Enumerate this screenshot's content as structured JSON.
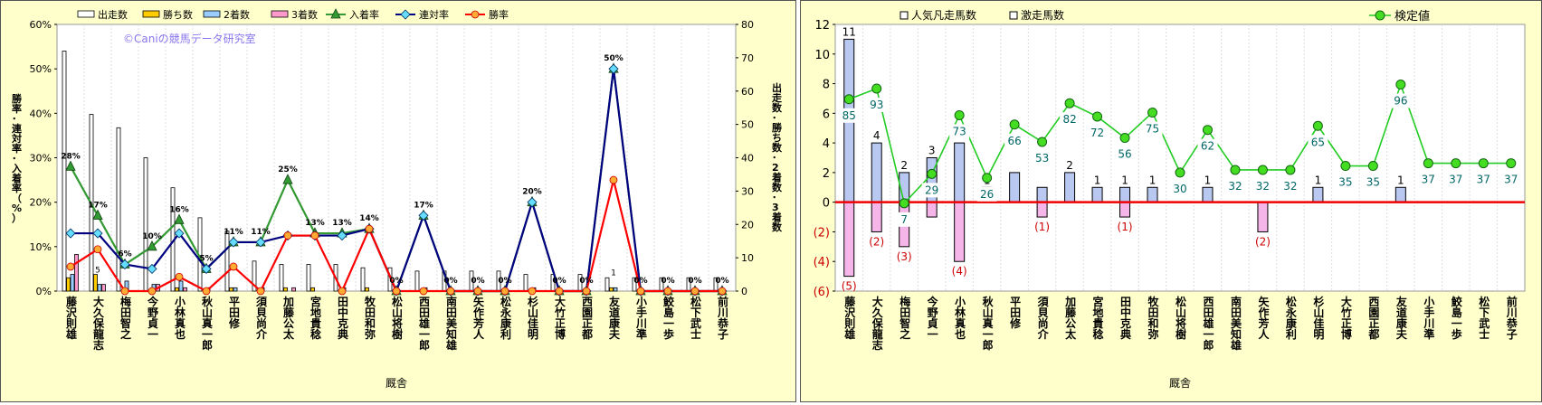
{
  "chart_data": [
    {
      "type": "bar",
      "xlabel": "厩舎",
      "ylabel_left": "勝率･連対率･入着率（%）",
      "ylabel_right": "出走数･勝ち数･2着数･3着数",
      "ylim_left": [
        0,
        60
      ],
      "ylim_right": [
        0,
        80
      ],
      "yticks_left": [
        "0%",
        "10%",
        "20%",
        "30%",
        "40%",
        "50%",
        "60%"
      ],
      "yticks_right": [
        "0",
        "10",
        "20",
        "30",
        "40",
        "50",
        "60",
        "70",
        "80"
      ],
      "watermark": "©Caniの競馬データ研究室",
      "legend": [
        "出走数",
        "勝ち数",
        "2着数",
        "3着数",
        "入着率",
        "連対率",
        "勝率"
      ],
      "categories": [
        "藤沢 則雄",
        "大久保 龍志",
        "梅田 智之",
        "今野 貞一",
        "小林 真也",
        "秋山 真一郎",
        "平田 修",
        "須貝 尚介",
        "加藤 公太",
        "宮地 貴稔",
        "田中 克典",
        "牧田 和弥",
        "松山 将樹",
        "西田 雄一郎",
        "南田 美知雄",
        "矢作 芳人",
        "松永 康利",
        "杉山 佳明",
        "大竹 正博",
        "西園 正都",
        "友道 康夫",
        "小手川 準",
        "鮫島 一歩",
        "松下 武士",
        "前川 恭子"
      ],
      "series": [
        {
          "name": "出走数",
          "axis": "right",
          "color": "#ffffff",
          "values": [
            72,
            53,
            49,
            40,
            31,
            22,
            18,
            9,
            8,
            8,
            8,
            7,
            7,
            6,
            6,
            6,
            6,
            5,
            5,
            5,
            4,
            4,
            4,
            4,
            4
          ]
        },
        {
          "name": "勝ち数",
          "axis": "right",
          "color": "#ffcc00",
          "values": [
            4,
            5,
            0,
            0,
            1,
            0,
            1,
            0,
            1,
            1,
            0,
            1,
            0,
            0,
            0,
            0,
            0,
            0,
            0,
            0,
            1,
            0,
            0,
            0,
            0
          ]
        },
        {
          "name": "2着数",
          "axis": "right",
          "color": "#99ccff",
          "values": [
            5,
            2,
            3,
            2,
            3,
            1,
            1,
            1,
            0,
            0,
            1,
            0,
            0,
            1,
            0,
            0,
            0,
            1,
            0,
            0,
            1,
            0,
            0,
            0,
            0
          ]
        },
        {
          "name": "3着数",
          "axis": "right",
          "color": "#ff99cc",
          "values": [
            11,
            2,
            0,
            2,
            1,
            0,
            0,
            0,
            1,
            0,
            0,
            0,
            0,
            0,
            0,
            0,
            0,
            0,
            0,
            0,
            0,
            0,
            0,
            0,
            0
          ]
        },
        {
          "name": "入着率",
          "axis": "left",
          "color": "#339933",
          "values": [
            28,
            17,
            6,
            10,
            16,
            5,
            11,
            11,
            25,
            13,
            13,
            14,
            0,
            17,
            0,
            0,
            0,
            20,
            0,
            0,
            50,
            0,
            0,
            0,
            0
          ]
        },
        {
          "name": "連対率",
          "axis": "left",
          "color": "#000080",
          "values": [
            13,
            13,
            6,
            5,
            13,
            5,
            11,
            11,
            12.5,
            12.5,
            12.5,
            14,
            0,
            17,
            0,
            0,
            0,
            20,
            0,
            0,
            50,
            0,
            0,
            0,
            0
          ]
        },
        {
          "name": "勝率",
          "axis": "left",
          "color": "#ff0000",
          "values": [
            5.5,
            9.4,
            0,
            0,
            3.2,
            0,
            5.5,
            0,
            12.5,
            12.5,
            0,
            14,
            0,
            0,
            0,
            0,
            0,
            0,
            0,
            0,
            25,
            0,
            0,
            0,
            0
          ]
        }
      ],
      "point_labels": [
        "28%",
        "17%",
        "6%",
        "10%",
        "16%",
        "5%",
        "11%",
        "11%",
        "25%",
        "13%",
        "13%",
        "14%",
        "0%",
        "17%",
        "0%",
        "0%",
        "0%",
        "20%",
        "0%",
        "0%",
        "50%",
        "0%",
        "0%",
        "0%",
        "0%"
      ],
      "bar_labels": [
        {
          "index": 1,
          "text": "5"
        },
        {
          "index": 20,
          "text": "1"
        }
      ]
    },
    {
      "type": "bar",
      "xlabel": "厩舎",
      "ylim": [
        -6,
        12
      ],
      "yticks": [
        "(6)",
        "(4)",
        "(2)",
        "0",
        "2",
        "4",
        "6",
        "8",
        "10",
        "12"
      ],
      "legend": [
        "人気凡走馬数",
        "激走馬数",
        "検定値"
      ],
      "categories": [
        "藤沢 則雄",
        "大久保 龍志",
        "梅田 智之",
        "今野 貞一",
        "小林 真也",
        "秋山 真一郎",
        "平田 修",
        "須貝 尚介",
        "加藤 公太",
        "宮地 貴稔",
        "田中 克典",
        "牧田 和弥",
        "松山 将樹",
        "西田 雄一郎",
        "南田 美知雄",
        "矢作 芳人",
        "松永 康利",
        "杉山 佳明",
        "大竹 正博",
        "西園 正都",
        "友道 康夫",
        "小手川 準",
        "鮫島 一歩",
        "松下 武士",
        "前川 恭子"
      ],
      "series": [
        {
          "name": "激走馬数",
          "color": "#aabbee",
          "values": [
            11,
            4,
            2,
            3,
            4,
            1,
            2,
            1,
            2,
            1,
            1,
            1,
            0,
            1,
            0,
            0,
            0,
            1,
            0,
            0,
            1,
            0,
            0,
            0,
            0
          ]
        },
        {
          "name": "人気凡走馬数",
          "color": "#f5b5e8",
          "values": [
            -5,
            -2,
            -3,
            -1,
            -4,
            0,
            0,
            -1,
            0,
            0,
            -1,
            0,
            0,
            0,
            0,
            -2,
            0,
            0,
            0,
            0,
            0,
            0,
            0,
            0,
            0
          ]
        },
        {
          "name": "検定値",
          "color": "#22cc22",
          "values": [
            85,
            93,
            7,
            29,
            73,
            26,
            66,
            53,
            82,
            72,
            56,
            75,
            30,
            62,
            32,
            32,
            32,
            65,
            35,
            35,
            96,
            37,
            37,
            37,
            37
          ]
        }
      ],
      "positive_labels": [
        "11",
        "4",
        "2",
        "3",
        "",
        "1",
        "",
        "",
        "2",
        "1",
        "1",
        "1",
        "",
        "1",
        "",
        "",
        "",
        "1",
        "",
        "",
        "1",
        "",
        "",
        "",
        ""
      ],
      "negative_labels": [
        "(5)",
        "(2)",
        "(3)",
        "",
        "(4)",
        "",
        "",
        "(1)",
        "",
        "",
        "(1)",
        "",
        "",
        "",
        "",
        "(2)",
        "",
        "",
        "",
        "",
        "",
        "",
        "",
        "",
        ""
      ],
      "kentei_labels": [
        "85",
        "93",
        "7",
        "29",
        "73",
        "26",
        "66",
        "53",
        "82",
        "72",
        "56",
        "75",
        "30",
        "62",
        "32",
        "32",
        "32",
        "65",
        "35",
        "35",
        "96",
        "37",
        "37",
        "37",
        "37"
      ]
    }
  ]
}
